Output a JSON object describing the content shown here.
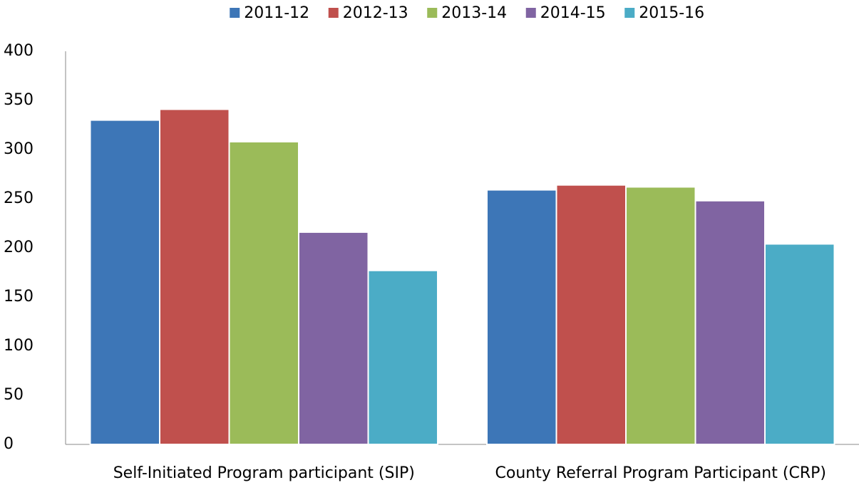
{
  "chart_data": {
    "type": "bar",
    "categories": [
      "Self-Initiated Program participant (SIP)",
      "County Referral Program Participant (CRP)"
    ],
    "series": [
      {
        "name": "2011-12",
        "color": "#3d76b7",
        "values": [
          330,
          259
        ]
      },
      {
        "name": "2012-13",
        "color": "#c0504d",
        "values": [
          341,
          264
        ]
      },
      {
        "name": "2013-14",
        "color": "#9bbb59",
        "values": [
          308,
          262
        ]
      },
      {
        "name": "2014-15",
        "color": "#8064a2",
        "values": [
          216,
          248
        ]
      },
      {
        "name": "2015-16",
        "color": "#4bacc6",
        "values": [
          177,
          204
        ]
      }
    ],
    "ylim": [
      0,
      400
    ],
    "yticks": [
      0,
      50,
      100,
      150,
      200,
      250,
      300,
      350,
      400
    ],
    "grid": false,
    "legend": "top"
  }
}
